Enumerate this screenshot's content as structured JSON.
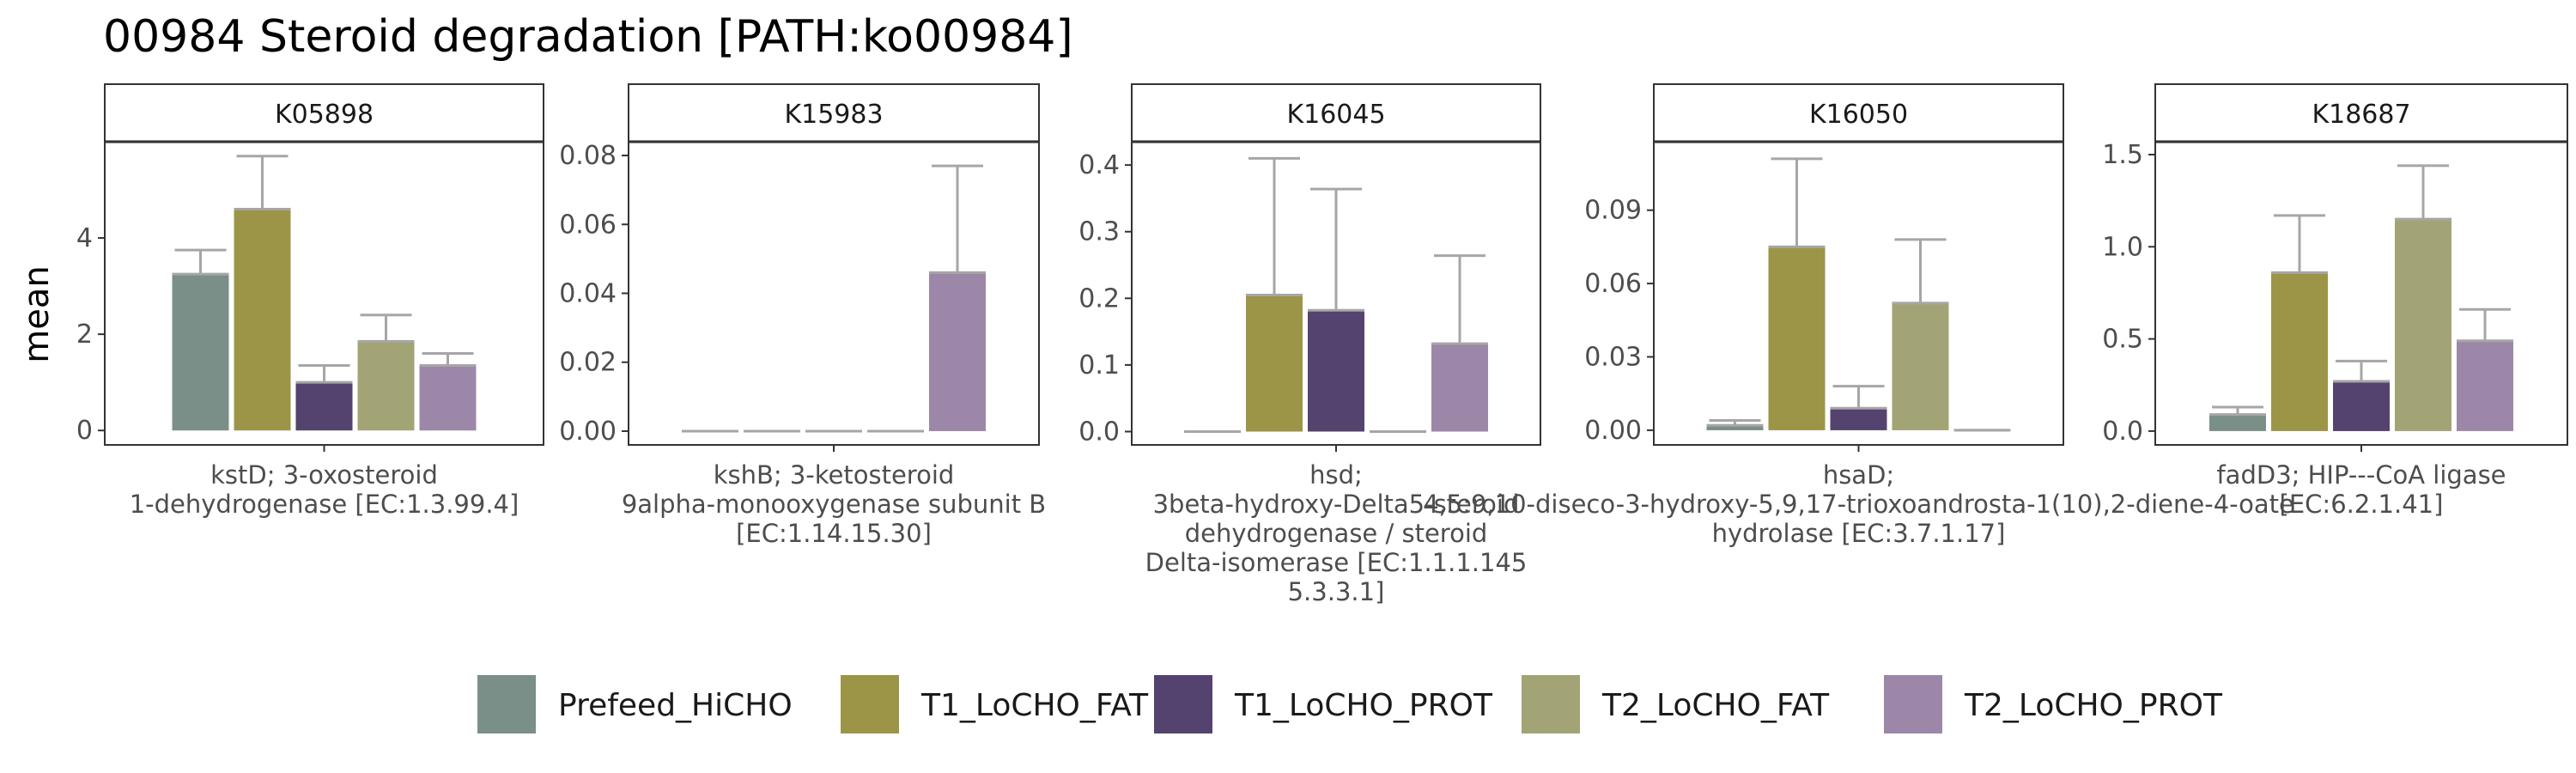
{
  "chart_data": {
    "type": "bar",
    "title": "00984 Steroid degradation [PATH:ko00984]",
    "ylabel": "mean",
    "series_names": [
      "Prefeed_HiCHO",
      "T1_LoCHO_FAT",
      "T1_LoCHO_PROT",
      "T2_LoCHO_FAT",
      "T2_LoCHO_PROT"
    ],
    "colors": {
      "Prefeed_HiCHO": "#7a8f87",
      "T1_LoCHO_FAT": "#9c9547",
      "T1_LoCHO_PROT": "#54436e",
      "T2_LoCHO_FAT": "#a2a476",
      "T2_LoCHO_PROT": "#9c87a8",
      "errorbar": "#a6a6a6"
    },
    "panels": [
      {
        "strip": "K05898",
        "category_lines": [
          "kstD; 3-oxosteroid",
          "1-dehydrogenase [EC:1.3.99.4]"
        ],
        "ylim": [
          -0.3,
          6.0
        ],
        "yticks": [
          0,
          2,
          4
        ],
        "ytick_labels": [
          "0",
          "2",
          "4"
        ],
        "values": [
          3.25,
          4.6,
          1.0,
          1.85,
          1.35
        ],
        "errors": [
          0.5,
          1.1,
          0.35,
          0.55,
          0.25
        ]
      },
      {
        "strip": "K15983",
        "category_lines": [
          "kshB; 3-ketosteroid",
          "9alpha-monooxygenase subunit B",
          "[EC:1.14.15.30]"
        ],
        "ylim": [
          -0.004,
          0.084
        ],
        "yticks": [
          0,
          0.02,
          0.04,
          0.06,
          0.08
        ],
        "ytick_labels": [
          "0.00",
          "0.02",
          "0.04",
          "0.06",
          "0.08"
        ],
        "values": [
          0,
          0,
          0,
          0,
          0.046
        ],
        "errors": [
          0,
          0,
          0,
          0,
          0.031
        ]
      },
      {
        "strip": "K16045",
        "category_lines": [
          "hsd;",
          "3beta-hydroxy-Delta5-steroid",
          "dehydrogenase / steroid",
          "Delta-isomerase [EC:1.1.1.145",
          "5.3.3.1]"
        ],
        "ylim": [
          -0.02,
          0.435
        ],
        "yticks": [
          0,
          0.1,
          0.2,
          0.3,
          0.4
        ],
        "ytick_labels": [
          "0.0",
          "0.1",
          "0.2",
          "0.3",
          "0.4"
        ],
        "values": [
          0,
          0.205,
          0.182,
          0,
          0.132
        ],
        "errors": [
          0,
          0.205,
          0.182,
          0,
          0.132
        ]
      },
      {
        "strip": "K16050",
        "category_lines": [
          "hsaD;",
          "4,5:9,10-diseco-3-hydroxy-5,9,17-trioxoandrosta-1(10),2-diene-4-oate",
          "hydrolase [EC:3.7.1.17]"
        ],
        "ylim": [
          -0.006,
          0.118
        ],
        "yticks": [
          0,
          0.03,
          0.06,
          0.09
        ],
        "ytick_labels": [
          "0.00",
          "0.03",
          "0.06",
          "0.09"
        ],
        "values": [
          0.002,
          0.075,
          0.009,
          0.052,
          0
        ],
        "errors": [
          0.002,
          0.036,
          0.009,
          0.026,
          0
        ]
      },
      {
        "strip": "K18687",
        "category_lines": [
          "fadD3; HIP---CoA ligase",
          "[EC:6.2.1.41]"
        ],
        "ylim": [
          -0.075,
          1.57
        ],
        "yticks": [
          0,
          0.5,
          1.0,
          1.5
        ],
        "ytick_labels": [
          "0.0",
          "0.5",
          "1.0",
          "1.5"
        ],
        "values": [
          0.09,
          0.86,
          0.27,
          1.15,
          0.49
        ],
        "errors": [
          0.04,
          0.31,
          0.11,
          0.29,
          0.17
        ]
      }
    ],
    "legend": {
      "position": "bottom",
      "entries": [
        "Prefeed_HiCHO",
        "T1_LoCHO_FAT",
        "T1_LoCHO_PROT",
        "T2_LoCHO_FAT",
        "T2_LoCHO_PROT"
      ]
    }
  }
}
